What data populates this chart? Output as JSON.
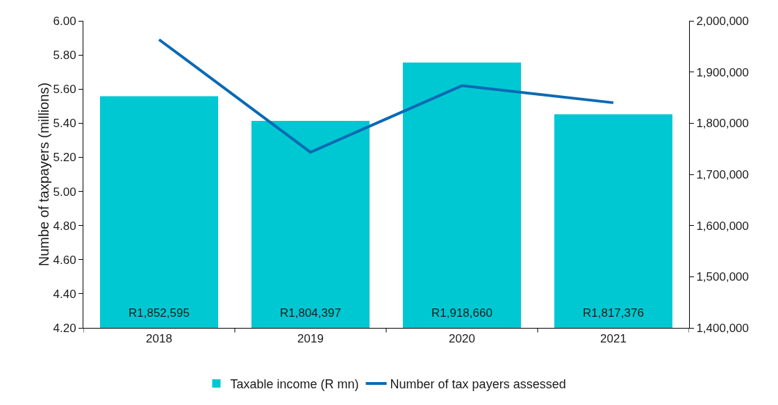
{
  "chart_data": {
    "type": "bar",
    "categories": [
      "2018",
      "2019",
      "2020",
      "2021"
    ],
    "ylabel": "Numbe of taxpayers (millions)",
    "ylim": [
      4.2,
      6.0
    ],
    "yticks": [
      {
        "value": 4.2,
        "label": "4.20"
      },
      {
        "value": 4.4,
        "label": "4.40"
      },
      {
        "value": 4.6,
        "label": "4.60"
      },
      {
        "value": 4.8,
        "label": "4.80"
      },
      {
        "value": 5.0,
        "label": "5.00"
      },
      {
        "value": 5.2,
        "label": "5.20"
      },
      {
        "value": 5.4,
        "label": "5.40"
      },
      {
        "value": 5.6,
        "label": "5.60"
      },
      {
        "value": 5.8,
        "label": "5.80"
      },
      {
        "value": 6.0,
        "label": "6.00"
      }
    ],
    "y2lim": [
      1400000,
      2000000
    ],
    "y2ticks": [
      {
        "value": 1400000,
        "label": "1,400,000"
      },
      {
        "value": 1500000,
        "label": "1,500,000"
      },
      {
        "value": 1600000,
        "label": "1,600,000"
      },
      {
        "value": 1700000,
        "label": "1,700,000"
      },
      {
        "value": 1800000,
        "label": "1,800,000"
      },
      {
        "value": 1900000,
        "label": "1,900,000"
      },
      {
        "value": 2000000,
        "label": "2,000,000"
      }
    ],
    "series": [
      {
        "name": "Taxable income (R mn)",
        "axis": "y2",
        "color": "#00c8d2",
        "values": [
          1852595,
          1804397,
          1918660,
          1817376
        ],
        "value_labels": [
          "R1,852,595",
          "R1,804,397",
          "R1,918,660",
          "R1,817,376"
        ]
      },
      {
        "name": "Number of tax payers assessed",
        "type": "line",
        "axis": "y",
        "color": "#0a6ab4",
        "values": [
          5.89,
          5.23,
          5.62,
          5.52
        ]
      }
    ],
    "grid": false,
    "legend": "bottom",
    "marker": "none"
  }
}
